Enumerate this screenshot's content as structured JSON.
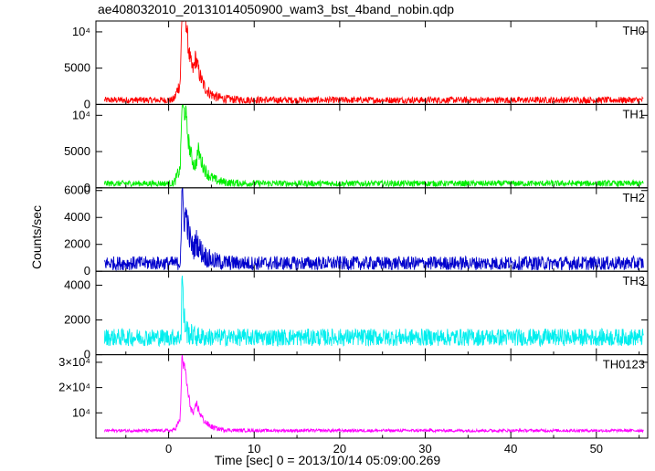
{
  "title": "ae408032010_20131014050900_wam3_bst_4band_nobin.qdp",
  "xlabel": "Time [sec] 0 = 2013/10/14 05:09:00.269",
  "ylabel": "Counts/sec",
  "chart_data": {
    "type": "line",
    "xlim": [
      -8.5,
      56
    ],
    "xticks": [
      0,
      10,
      20,
      30,
      40,
      50
    ],
    "xticklabels": [
      "0",
      "10",
      "20",
      "30",
      "40",
      "50"
    ],
    "panels": [
      {
        "name": "TH0",
        "color": "#ff0000",
        "ylim": [
          0,
          11500
        ],
        "yticks": [
          0,
          5000,
          10000
        ],
        "yticklabels": [
          "0",
          "5000",
          "10⁴"
        ],
        "baseline": 600,
        "noise": 450,
        "peaks": [
          [
            1.6,
            11000,
            0.35
          ],
          [
            2.0,
            7000,
            0.9
          ],
          [
            3.2,
            3200,
            0.8
          ],
          [
            1.2,
            1800,
            1.8
          ]
        ]
      },
      {
        "name": "TH1",
        "color": "#00ee00",
        "ylim": [
          0,
          11500
        ],
        "yticks": [
          0,
          5000,
          10000
        ],
        "yticklabels": [
          "0",
          "5000",
          "10⁴"
        ],
        "baseline": 600,
        "noise": 420,
        "peaks": [
          [
            1.6,
            10000,
            0.35
          ],
          [
            2.0,
            5500,
            0.9
          ],
          [
            3.5,
            3000,
            0.8
          ],
          [
            1.2,
            1500,
            1.8
          ]
        ]
      },
      {
        "name": "TH2",
        "color": "#0000cc",
        "ylim": [
          0,
          6200
        ],
        "yticks": [
          0,
          2000,
          4000,
          6000
        ],
        "yticklabels": [
          "0",
          "2000",
          "4000",
          "6000"
        ],
        "baseline": 600,
        "noise": 520,
        "peaks": [
          [
            1.6,
            5500,
            0.3
          ],
          [
            2.1,
            2500,
            0.8
          ],
          [
            3.3,
            1000,
            1.0
          ]
        ]
      },
      {
        "name": "TH3",
        "color": "#00eeee",
        "ylim": [
          0,
          4800
        ],
        "yticks": [
          0,
          2000,
          4000
        ],
        "yticklabels": [
          "0",
          "2000",
          "4000"
        ],
        "baseline": 1000,
        "noise": 500,
        "peaks": [
          [
            1.6,
            3900,
            0.12
          ],
          [
            1.9,
            500,
            0.6
          ]
        ]
      },
      {
        "name": "TH0123",
        "color": "#ff00ff",
        "ylim": [
          0,
          33000
        ],
        "yticks": [
          10000,
          20000,
          30000
        ],
        "yticklabels": [
          "10⁴",
          "2×10⁴",
          "3×10⁴"
        ],
        "baseline": 3000,
        "noise": 600,
        "peaks": [
          [
            1.6,
            28000,
            0.35
          ],
          [
            2.0,
            12000,
            0.9
          ],
          [
            3.3,
            6500,
            0.8
          ],
          [
            1.2,
            3000,
            1.8
          ]
        ]
      }
    ]
  }
}
